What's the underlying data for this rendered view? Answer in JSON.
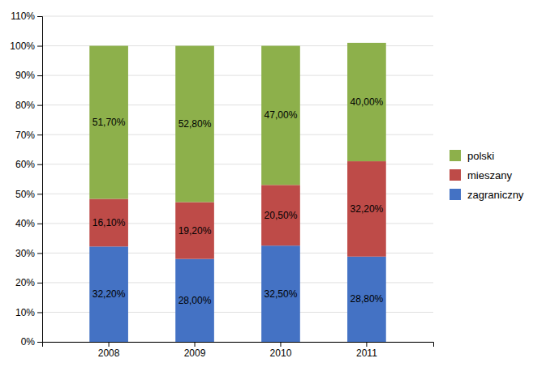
{
  "chart_data": {
    "type": "bar",
    "stacked": true,
    "categories": [
      "2008",
      "2009",
      "2010",
      "2011"
    ],
    "series": [
      {
        "name": "zagraniczny",
        "color": "#4472C4",
        "values": [
          32.2,
          28.0,
          32.5,
          28.8
        ],
        "value_labels": [
          "32,20%",
          "28,00%",
          "32,50%",
          "28,80%"
        ]
      },
      {
        "name": "mieszany",
        "color": "#BE4B48",
        "values": [
          16.1,
          19.2,
          20.5,
          32.2
        ],
        "value_labels": [
          "16,10%",
          "19,20%",
          "20,50%",
          "32,20%"
        ]
      },
      {
        "name": "polski",
        "color": "#8DB04B",
        "values": [
          51.7,
          52.8,
          47.0,
          40.0
        ],
        "value_labels": [
          "51,70%",
          "52,80%",
          "47,00%",
          "40,00%"
        ]
      }
    ],
    "ylim": [
      0,
      110
    ],
    "yticks": [
      {
        "value": 0,
        "label": "0%"
      },
      {
        "value": 10,
        "label": "10%"
      },
      {
        "value": 20,
        "label": "20%"
      },
      {
        "value": 30,
        "label": "30%"
      },
      {
        "value": 40,
        "label": "40%"
      },
      {
        "value": 50,
        "label": "50%"
      },
      {
        "value": 60,
        "label": "60%"
      },
      {
        "value": 70,
        "label": "70%"
      },
      {
        "value": 80,
        "label": "80%"
      },
      {
        "value": 90,
        "label": "90%"
      },
      {
        "value": 100,
        "label": "100%"
      },
      {
        "value": 110,
        "label": "110%"
      }
    ],
    "grid": true,
    "data_labels": true,
    "legend": "right"
  }
}
